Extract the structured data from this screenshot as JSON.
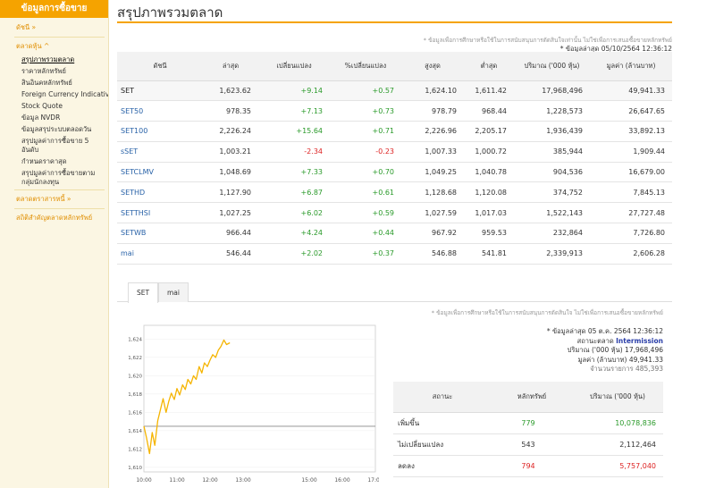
{
  "sidebar": {
    "header": "ข้อมูลการซื้อขาย",
    "sections": [
      {
        "label": "ดัชนี »",
        "items": []
      },
      {
        "label": "ตลาดหุ้น ^",
        "items": [
          {
            "label": "สรุปภาพรวมตลาด",
            "active": true
          },
          {
            "label": "ราคาหลักทรัพย์"
          },
          {
            "label": "สินอินคหลักทรัพย์"
          },
          {
            "label": "Foreign Currency Indicative"
          },
          {
            "label": "Stock Quote"
          },
          {
            "label": "ข้อมูล NVDR"
          },
          {
            "label": "ข้อมูลสรุประบบตลอดวัน"
          },
          {
            "label": "สรุปมูลค่าการซื้อขาย 5 อันดับ"
          },
          {
            "label": "กำหนดราคาสุด"
          },
          {
            "label": "สรุปมูลค่าการซื้อขายตามกลุ่มนักลงทุน"
          }
        ]
      },
      {
        "label": "ตลาดตราสารหนี้ »",
        "items": []
      },
      {
        "label": "สถิติสำคัญตลาดหลักทรัพย์",
        "items": []
      }
    ]
  },
  "main": {
    "title": "สรุปภาพรวมตลาด",
    "disclaimer": "* ข้อมูลเพื่อการศึกษาหรือใช้ในการสนับสนุนการตัดสินใจเท่านั้น ไม่ใช่เพื่อการเสนอซื้อขายหลักทรัพย์",
    "updated": "* ข้อมูลล่าสุด 05/10/2564 12:36:12",
    "table": {
      "headers": [
        "ดัชนี",
        "ล่าสุด",
        "เปลี่ยนแปลง",
        "%เปลี่ยนแปลง",
        "สูงสุด",
        "ต่ำสุด",
        "ปริมาณ ('000 หุ้น)",
        "มูลค่า (ล้านบาท)"
      ],
      "rows": [
        {
          "index": "SET",
          "last": "1,623.62",
          "change": "+9.14",
          "pct": "+0.57",
          "high": "1,624.10",
          "low": "1,611.42",
          "volume": "17,968,496",
          "value": "49,941.33"
        },
        {
          "index": "SET50",
          "last": "978.35",
          "change": "+7.13",
          "pct": "+0.73",
          "high": "978.79",
          "low": "968.44",
          "volume": "1,228,573",
          "value": "26,647.65"
        },
        {
          "index": "SET100",
          "last": "2,226.24",
          "change": "+15.64",
          "pct": "+0.71",
          "high": "2,226.96",
          "low": "2,205.17",
          "volume": "1,936,439",
          "value": "33,892.13"
        },
        {
          "index": "sSET",
          "last": "1,003.21",
          "change": "-2.34",
          "pct": "-0.23",
          "high": "1,007.33",
          "low": "1,000.72",
          "volume": "385,944",
          "value": "1,909.44"
        },
        {
          "index": "SETCLMV",
          "last": "1,048.69",
          "change": "+7.33",
          "pct": "+0.70",
          "high": "1,049.25",
          "low": "1,040.78",
          "volume": "904,536",
          "value": "16,679.00"
        },
        {
          "index": "SETHD",
          "last": "1,127.90",
          "change": "+6.87",
          "pct": "+0.61",
          "high": "1,128.68",
          "low": "1,120.08",
          "volume": "374,752",
          "value": "7,845.13"
        },
        {
          "index": "SETTHSI",
          "last": "1,027.25",
          "change": "+6.02",
          "pct": "+0.59",
          "high": "1,027.59",
          "low": "1,017.03",
          "volume": "1,522,143",
          "value": "27,727.48"
        },
        {
          "index": "SETWB",
          "last": "966.44",
          "change": "+4.24",
          "pct": "+0.44",
          "high": "967.92",
          "low": "959.53",
          "volume": "232,864",
          "value": "7,726.80"
        },
        {
          "index": "mai",
          "last": "546.44",
          "change": "+2.02",
          "pct": "+0.37",
          "high": "546.88",
          "low": "541.81",
          "volume": "2,339,913",
          "value": "2,606.28"
        }
      ]
    },
    "tabs": [
      "SET",
      "mai"
    ]
  },
  "chart_data": {
    "type": "line",
    "x_ticks": [
      "10:00",
      "11:00",
      "12:00",
      "13:00",
      "15:00",
      "16:00",
      "17:00"
    ],
    "y_ticks": [
      "1,624",
      "1,622",
      "1,620",
      "1,618",
      "1,616",
      "1,614",
      "1,612",
      "1,610"
    ],
    "ylim": [
      1609.5,
      1625.5
    ],
    "prev_close": 1614.48,
    "x": [
      10.0,
      10.08,
      10.17,
      10.25,
      10.33,
      10.42,
      10.5,
      10.58,
      10.67,
      10.75,
      10.83,
      10.92,
      11.0,
      11.08,
      11.17,
      11.25,
      11.33,
      11.42,
      11.5,
      11.58,
      11.67,
      11.75,
      11.83,
      11.92,
      12.0,
      12.08,
      12.17,
      12.25,
      12.33,
      12.42,
      12.5,
      12.6
    ],
    "y": [
      1614.5,
      1613.2,
      1611.5,
      1613.8,
      1612.4,
      1615.1,
      1616.3,
      1617.5,
      1616.0,
      1617.2,
      1618.1,
      1617.4,
      1618.6,
      1617.9,
      1619.0,
      1618.5,
      1619.6,
      1619.1,
      1620.0,
      1619.6,
      1621.0,
      1620.3,
      1621.4,
      1621.0,
      1621.7,
      1622.3,
      1622.0,
      1622.8,
      1623.2,
      1623.9,
      1623.4,
      1623.6
    ],
    "color": "#f5b400"
  },
  "summary": {
    "disclaimer": "* ข้อมูลเพื่อการศึกษาหรือใช้ในการสนับสนุนการตัดสินใจ ไม่ใช่เพื่อการเสนอซื้อขายหลักทรัพย์",
    "updated": "* ข้อมูลล่าสุด 05 ต.ค. 2564 12:36:12",
    "status_label": "สถานะตลาด",
    "status_value": "Intermission",
    "volume_label": "ปริมาณ ('000 หุ้น)",
    "volume_value": "17,968,496",
    "value_label": "มูลค่า (ล้านบาท)",
    "value_value": "49,941.33",
    "trades_label": "จำนวนรายการ",
    "trades_value": "485,393",
    "table": {
      "headers": [
        "สถานะ",
        "หลักทรัพย์",
        "ปริมาณ ('000 หุ้น)"
      ],
      "rows": [
        {
          "label": "เพิ่มขึ้น",
          "count": "779",
          "volume": "10,078,836",
          "color": "g"
        },
        {
          "label": "ไม่เปลี่ยนแปลง",
          "count": "543",
          "volume": "2,112,464",
          "color": ""
        },
        {
          "label": "ลดลง",
          "count": "794",
          "volume": "5,757,040",
          "color": "r"
        }
      ]
    }
  }
}
